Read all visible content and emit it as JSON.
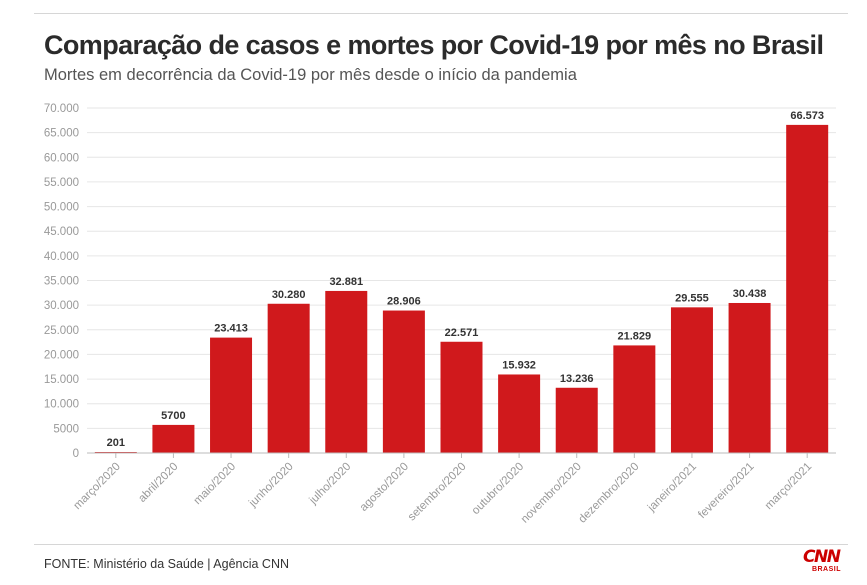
{
  "header": {
    "title": "Comparação de casos e mortes por Covid-19 por mês no Brasil",
    "subtitle": "Mortes em decorrência da Covid-19 por mês desde o início da pandemia"
  },
  "footer": {
    "source": "FONTE: Ministério da Saúde | Agência CNN",
    "logo_text": "CNN",
    "logo_subtext": "BRASIL"
  },
  "colors": {
    "bar": "#d0191c",
    "grid": "#e6e6e6",
    "axis_text": "#999999",
    "label_text": "#333333"
  },
  "chart_data": {
    "type": "bar",
    "categories": [
      "março/2020",
      "abril/2020",
      "maio/2020",
      "junho/2020",
      "julho/2020",
      "agosto/2020",
      "setembro/2020",
      "outubro/2020",
      "novembro/2020",
      "dezembro/2020",
      "janeiro/2021",
      "fevereiro/2021",
      "março/2021"
    ],
    "values": [
      201,
      5700,
      23413,
      30280,
      32881,
      28906,
      22571,
      15932,
      13236,
      21829,
      29555,
      30438,
      66573
    ],
    "data_labels": [
      "201",
      "5700",
      "23.413",
      "30.280",
      "32.881",
      "28.906",
      "22.571",
      "15.932",
      "13.236",
      "21.829",
      "29.555",
      "30.438",
      "66.573"
    ],
    "yticks": [
      0,
      5000,
      10000,
      15000,
      20000,
      25000,
      30000,
      35000,
      40000,
      45000,
      50000,
      55000,
      60000,
      65000,
      70000
    ],
    "ytick_labels": [
      "0",
      "5000",
      "10.000",
      "15.000",
      "20.000",
      "25.000",
      "30.000",
      "35.000",
      "40.000",
      "45.000",
      "50.000",
      "55.000",
      "60.000",
      "65.000",
      "70.000"
    ],
    "ylim": [
      0,
      70000
    ],
    "xlabel": "",
    "ylabel": "",
    "grid": true,
    "legend": "none"
  }
}
